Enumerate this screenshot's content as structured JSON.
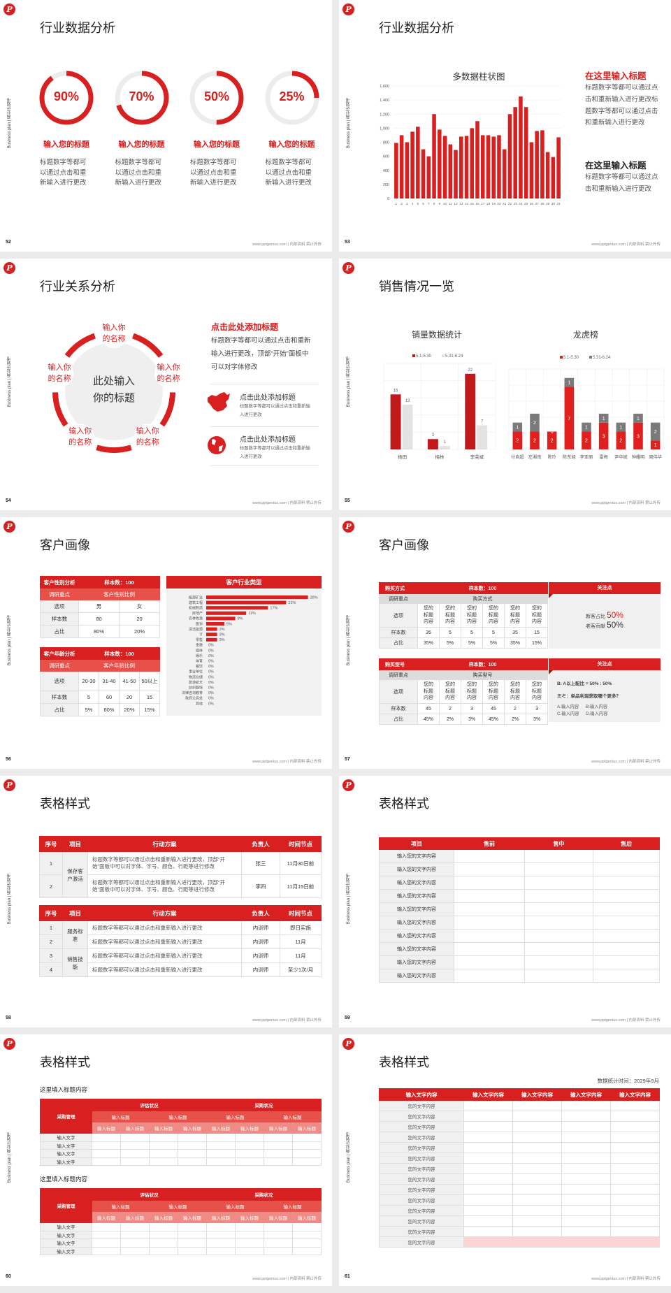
{
  "common": {
    "side_text": "Business plan | 商业计划书",
    "footer": "www.pptgenius.com | 内部资料 禁止外传",
    "accent": "#d7201f",
    "logo_icon": "red-circle-p-logo"
  },
  "slides": [
    {
      "page": "52",
      "title": "行业数据分析",
      "rings": [
        {
          "value": 90,
          "label": "90%",
          "title": "输入您的标题",
          "desc": "标题数字等都可以通过点击和重新输入进行更改"
        },
        {
          "value": 70,
          "label": "70%",
          "title": "输入您的标题",
          "desc": "标题数字等都可以通过点击和重新输入进行更改"
        },
        {
          "value": 50,
          "label": "50%",
          "title": "输入您的标题",
          "desc": "标题数字等都可以通过点击和重新输入进行更改"
        },
        {
          "value": 25,
          "label": "25%",
          "title": "输入您的标题",
          "desc": "标题数字等都可以通过点击和重新输入进行更改"
        }
      ]
    },
    {
      "page": "53",
      "title": "行业数据分析",
      "blocks": [
        {
          "title": "在这里输入标题",
          "text": "标题数字等都可以通过点击和重新输入进行更改标题数字等都可以通过点击和重新输入进行更改",
          "color": "#d7201f"
        },
        {
          "title": "在这里输入标题",
          "text": "标题数字等都可以通过点击和重新输入进行更改",
          "color": "#222222"
        }
      ]
    },
    {
      "page": "54",
      "title": "行业关系分析",
      "center": "此处输入你的标题",
      "nodes": [
        "输入你的名称",
        "输入你的名称",
        "输入你的名称",
        "输入你的名称",
        "输入你的名称"
      ],
      "right_title": "点击此处添加标题",
      "right_text": "标题数字等都可以通过点击和重新输入进行更改，顶部“开始”面板中可以对字体修改",
      "items": [
        {
          "icon": "china-map-icon",
          "title": "点击此处添加标题",
          "desc": "标题数字等都可以通过点击和重新输入进行更改"
        },
        {
          "icon": "globe-icon",
          "title": "点击此处添加标题",
          "desc": "标题数字等都可以通过点击和重新输入进行更改"
        }
      ]
    },
    {
      "page": "55",
      "title": "销售情况一览"
    },
    {
      "page": "56",
      "title": "客户画像",
      "gender_table": {
        "title": "客户性别分析",
        "sample": "样本数：100",
        "focus_label": "调研重点",
        "focus": "客户性别比例",
        "rows": [
          [
            "选项",
            "男",
            "女"
          ],
          [
            "样本数",
            "80",
            "20"
          ],
          [
            "占比",
            "80%",
            "20%"
          ]
        ]
      },
      "age_table": {
        "title": "客户年龄分析",
        "sample": "样本数：100",
        "focus_label": "调研重点",
        "focus": "客户年龄比例",
        "rows": [
          [
            "选项",
            "20-30",
            "31-40",
            "41-50",
            "50以上"
          ],
          [
            "样本数",
            "5",
            "60",
            "20",
            "15"
          ],
          [
            "占比",
            "5%",
            "60%",
            "20%",
            "15%"
          ]
        ]
      },
      "industry_title": "客户行业类型"
    },
    {
      "page": "57",
      "title": "客户画像",
      "tables": [
        {
          "title": "购买方式",
          "sample": "样本数：100",
          "focus_label": "调研重点",
          "focus": "购买方式",
          "rows": [
            [
              "选项",
              "您的标题内容",
              "您的标题内容",
              "您的标题内容",
              "您的标题内容",
              "您的标题内容",
              "您的标题内容"
            ],
            [
              "样本数",
              "35",
              "5",
              "5",
              "5",
              "35",
              "15"
            ],
            [
              "占比",
              "35%",
              "5%",
              "5%",
              "5%",
              "35%",
              "15%"
            ]
          ]
        },
        {
          "title": "购买型号",
          "sample": "样本数：100",
          "focus_label": "调研重点",
          "focus": "购买型号",
          "rows": [
            [
              "选项",
              "您的标题内容",
              "您的标题内容",
              "您的标题内容",
              "您的标题内容",
              "您的标题内容",
              "您的标题内容"
            ],
            [
              "样本数",
              "45",
              "2",
              "3",
              "45",
              "2",
              "3"
            ],
            [
              "占比",
              "45%",
              "2%",
              "3%",
              "45%",
              "2%",
              "3%"
            ]
          ]
        }
      ],
      "notes": [
        {
          "title": "关注点",
          "lines": [
            {
              "label": "新客占比",
              "value": "50%",
              "color": "#d7201f"
            },
            {
              "label": "老客贡献",
              "value": "50%",
              "color": "#333333"
            }
          ]
        },
        {
          "title": "关注点",
          "ratio": "B: A以上配比 = 50% : 50%",
          "question_label": "思考：",
          "question": "单品利润获取哪个更多？",
          "options": [
            "A.输入内容",
            "B.输入内容",
            "C.输入内容",
            "D.输入内容"
          ]
        }
      ]
    },
    {
      "page": "58",
      "title": "表格样式",
      "headers": [
        "序号",
        "项目",
        "行动方案",
        "负责人",
        "时间节点"
      ],
      "tables": [
        {
          "groups": [
            {
              "project": "保存客户激活",
              "rows": [
                {
                  "no": "1",
                  "plan": "标题数字等都可以通过点击和重新输入进行更改，顶部“开始”面板中可以对字体、字号、颜色、行距等进行修改",
                  "owner": "张三",
                  "time": "11月30日前"
                },
                {
                  "no": "2",
                  "plan": "标题数字等都可以通过点击和重新输入进行更改，顶部“开始”面板中可以对字体、字号、颜色、行距等进行修改",
                  "owner": "李四",
                  "time": "11月15日前"
                }
              ]
            }
          ]
        },
        {
          "groups": [
            {
              "project": "服务标准",
              "rows": [
                {
                  "no": "1",
                  "plan": "标题数字等都可以通过点击和重新输入进行更改",
                  "owner": "内训师",
                  "time": "即日实施"
                },
                {
                  "no": "2",
                  "plan": "标题数字等都可以通过点击和重新输入进行更改",
                  "owner": "内训师",
                  "time": "11月"
                }
              ]
            },
            {
              "project": "销售技能",
              "rows": [
                {
                  "no": "3",
                  "plan": "标题数字等都可以通过点击和重新输入进行更改",
                  "owner": "内训师",
                  "time": "11月"
                },
                {
                  "no": "4",
                  "plan": "标题数字等都可以通过点击和重新输入进行更改",
                  "owner": "内训师",
                  "time": "至少1次/月"
                }
              ]
            }
          ]
        }
      ]
    },
    {
      "page": "59",
      "title": "表格样式",
      "headers": [
        "项目",
        "售前",
        "售中",
        "售后"
      ],
      "rows": [
        "输入您的文字内容",
        "输入您的文字内容",
        "输入您的文字内容",
        "输入您的文字内容",
        "输入您的文字内容",
        "输入您的文字内容",
        "输入您的文字内容",
        "输入您的文字内容",
        "输入您的文字内容",
        "输入您的文字内容"
      ]
    },
    {
      "page": "60",
      "title": "表格样式",
      "blocks": [
        {
          "subtitle": "这里填入标题内容",
          "corner": "采购管理",
          "groups": [
            "评估状况",
            "采购状况"
          ],
          "sub": [
            "输入标题",
            "输入标题",
            "输入标题",
            "输入标题"
          ],
          "subsub": [
            "输入标题",
            "输入标题",
            "输入标题",
            "输入标题",
            "输入标题",
            "输入标题",
            "输入标题",
            "输入标题"
          ],
          "rows": [
            "输入文字",
            "输入文字",
            "输入文字",
            "输入文字"
          ]
        },
        {
          "subtitle": "这里填入标题内容",
          "corner": "采购管理",
          "groups": [
            "评估状况",
            "采购状况"
          ],
          "sub": [
            "输入标题",
            "输入标题",
            "输入标题",
            "输入标题"
          ],
          "subsub": [
            "输入标题",
            "输入标题",
            "输入标题",
            "输入标题",
            "输入标题",
            "输入标题",
            "输入标题",
            "输入标题"
          ],
          "rows": [
            "输入文字",
            "输入文字",
            "输入文字",
            "输入文字"
          ]
        }
      ]
    },
    {
      "page": "61",
      "title": "表格样式",
      "date": "数据统计时间：2029年9月",
      "headers": [
        "输入文字内容",
        "输入文字内容",
        "输入文字内容",
        "输入文字内容",
        "输入文字内容"
      ],
      "rows": [
        "您的文字内容",
        "您的文字内容",
        "您的文字内容",
        "您的文字内容",
        "您的文字内容",
        "您的文字内容",
        "您的文字内容",
        "您的文字内容",
        "您的文字内容",
        "您的文字内容",
        "您的文字内容",
        "您的文字内容",
        "您的文字内容",
        "您的文字内容"
      ]
    }
  ],
  "chart_data": [
    {
      "type": "bar",
      "title": "多数据柱状图",
      "categories": [
        "1",
        "2",
        "3",
        "4",
        "5",
        "6",
        "7",
        "8",
        "9",
        "10",
        "11",
        "12",
        "13",
        "14",
        "15",
        "16",
        "17",
        "18",
        "19",
        "20",
        "21",
        "22",
        "23",
        "24",
        "25",
        "26",
        "27",
        "28",
        "29",
        "30",
        "31"
      ],
      "values": [
        790,
        900,
        800,
        950,
        1020,
        700,
        600,
        1200,
        980,
        890,
        770,
        690,
        880,
        890,
        1000,
        1100,
        900,
        900,
        880,
        900,
        700,
        1200,
        1300,
        1450,
        1300,
        800,
        960,
        970,
        660,
        590,
        870
      ],
      "ylim": [
        0,
        1600
      ],
      "yticks": [
        "0",
        "200",
        "400",
        "600",
        "800",
        "1,000",
        "1,200",
        "1,400",
        "1,600"
      ],
      "grid": true,
      "color": "#d7201f"
    },
    {
      "type": "bar",
      "title": "销量数据统计",
      "categories": [
        "杨田",
        "梅林",
        "李荣斌"
      ],
      "series": [
        {
          "name": "5.1-5.30",
          "values": [
            16,
            3,
            22
          ],
          "color": "#c0191b"
        },
        {
          "name": "5.31-6.24",
          "values": [
            13,
            1,
            7
          ],
          "color": "#e3e3e3"
        }
      ],
      "ylim": [
        0,
        25
      ],
      "legend": "top",
      "grid": true
    },
    {
      "type": "stacked-bar",
      "title": "龙虎榜",
      "categories": [
        "付自超",
        "左湘南",
        "陈玲",
        "陈东旭",
        "李亚丽",
        "雷梅",
        "尹华斌",
        "钟耀明",
        "周伟华"
      ],
      "series": [
        {
          "name": "5.1-5.30",
          "values": [
            2,
            2,
            2,
            7,
            2,
            3,
            2,
            3,
            1
          ],
          "color": "#e0201e"
        },
        {
          "name": "5.31-6.24",
          "values": [
            1,
            2,
            0,
            1,
            1,
            1,
            1,
            1,
            2
          ],
          "color": "#7a7a7a"
        }
      ],
      "ylim": [
        0,
        9
      ],
      "legend": "top",
      "grid": true
    },
    {
      "type": "bar",
      "orientation": "horizontal",
      "title": "客户行业类型",
      "categories": [
        "能源矿业",
        "建筑工程",
        "机械制造",
        "房地产",
        "农林牧渔",
        "医学",
        "清洁能源",
        "IT",
        "零售",
        "金融",
        "媒体",
        "娱乐",
        "体育",
        "餐饮",
        "事业单位",
        "物流仓储",
        "旅游航天",
        "纺织服饰",
        "法律咨询教育",
        "政府公务处",
        "其他"
      ],
      "values": [
        28,
        22,
        17,
        11,
        8,
        5,
        3,
        3,
        3,
        0,
        0,
        0,
        0,
        0,
        0,
        0,
        0,
        0,
        0,
        0,
        0
      ],
      "unit": "%",
      "color": "#d7201f"
    }
  ]
}
